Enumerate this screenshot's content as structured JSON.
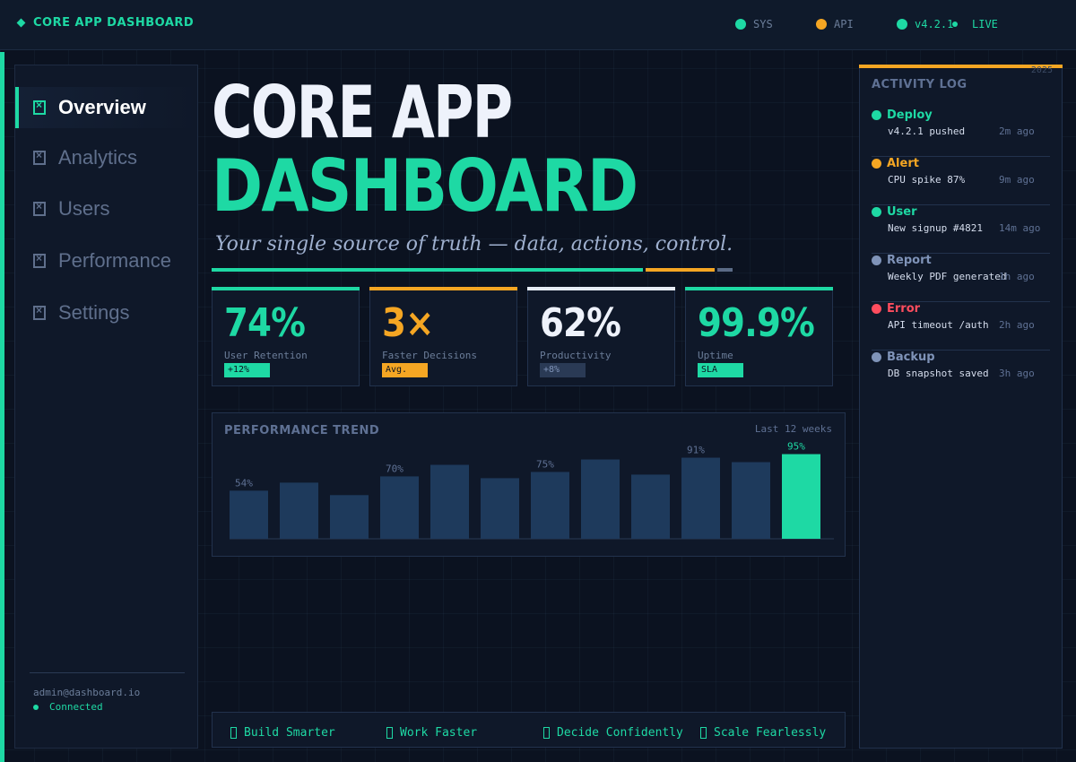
{
  "app": {
    "brand": "CORE APP DASHBOARD"
  },
  "topbar": {
    "status": [
      {
        "label": "SYS",
        "color": "#1ed9a4"
      },
      {
        "label": "API",
        "color": "#f5a623"
      },
      {
        "label": "v4.2.1",
        "color": "#1ed9a4"
      },
      {
        "label": "LIVE",
        "color": "#1ed9a4"
      }
    ]
  },
  "sidebar": {
    "items": [
      {
        "label": "Overview",
        "active": true
      },
      {
        "label": "Analytics",
        "active": false
      },
      {
        "label": "Users",
        "active": false
      },
      {
        "label": "Performance",
        "active": false
      },
      {
        "label": "Settings",
        "active": false
      }
    ],
    "user": "admin@dashboard.io",
    "connection": "Connected"
  },
  "hero": {
    "line1": "CORE APP",
    "line2": "DASHBOARD",
    "tagline": "Your single source of truth — data, actions, control."
  },
  "stats": [
    {
      "value": "74%",
      "label": "User Retention",
      "badge": "+12%",
      "accent": "#1ed9a4",
      "badge_bg": "#1ed9a4"
    },
    {
      "value": "3×",
      "label": "Faster Decisions",
      "badge": "Avg.",
      "accent": "#f5a623",
      "badge_bg": "#f5a623"
    },
    {
      "value": "62%",
      "label": "Productivity",
      "badge": "+8%",
      "accent": "#e6ecf5",
      "badge_bg": "#2a3a55"
    },
    {
      "value": "99.9%",
      "label": "Uptime",
      "badge": "SLA",
      "accent": "#1ed9a4",
      "badge_bg": "#1ed9a4"
    }
  ],
  "chart": {
    "title": "PERFORMANCE TREND",
    "range": "Last 12 weeks"
  },
  "chart_data": {
    "type": "bar",
    "title": "PERFORMANCE TREND",
    "subtitle": "Last 12 weeks",
    "values": [
      54,
      63,
      49,
      70,
      83,
      68,
      75,
      89,
      72,
      91,
      86,
      95
    ],
    "data_labels": {
      "0": "54%",
      "3": "70%",
      "6": "75%",
      "9": "91%",
      "11": "95%"
    },
    "highlight_index": 11,
    "ylim": [
      0,
      100
    ],
    "colors": {
      "bar": "#1e3a5c",
      "highlight": "#1ed9a4",
      "label": "#5f7194"
    }
  },
  "footer": {
    "items": [
      "Build Smarter",
      "Work Faster",
      "Decide Confidently",
      "Scale Fearlessly"
    ]
  },
  "activity": {
    "title": "ACTIVITY LOG",
    "year": "2025",
    "items": [
      {
        "type": "Deploy",
        "desc": "v4.2.1 pushed",
        "time": "2m ago",
        "color": "#1ed9a4"
      },
      {
        "type": "Alert",
        "desc": "CPU spike 87%",
        "time": "9m ago",
        "color": "#f5a623"
      },
      {
        "type": "User",
        "desc": "New signup #4821",
        "time": "14m ago",
        "color": "#1ed9a4"
      },
      {
        "type": "Report",
        "desc": "Weekly PDF generated",
        "time": "1h ago",
        "color": "#7f93b8"
      },
      {
        "type": "Error",
        "desc": "API timeout /auth",
        "time": "2h ago",
        "color": "#ff4d5e"
      },
      {
        "type": "Backup",
        "desc": "DB snapshot saved",
        "time": "3h ago",
        "color": "#7f93b8"
      }
    ]
  }
}
